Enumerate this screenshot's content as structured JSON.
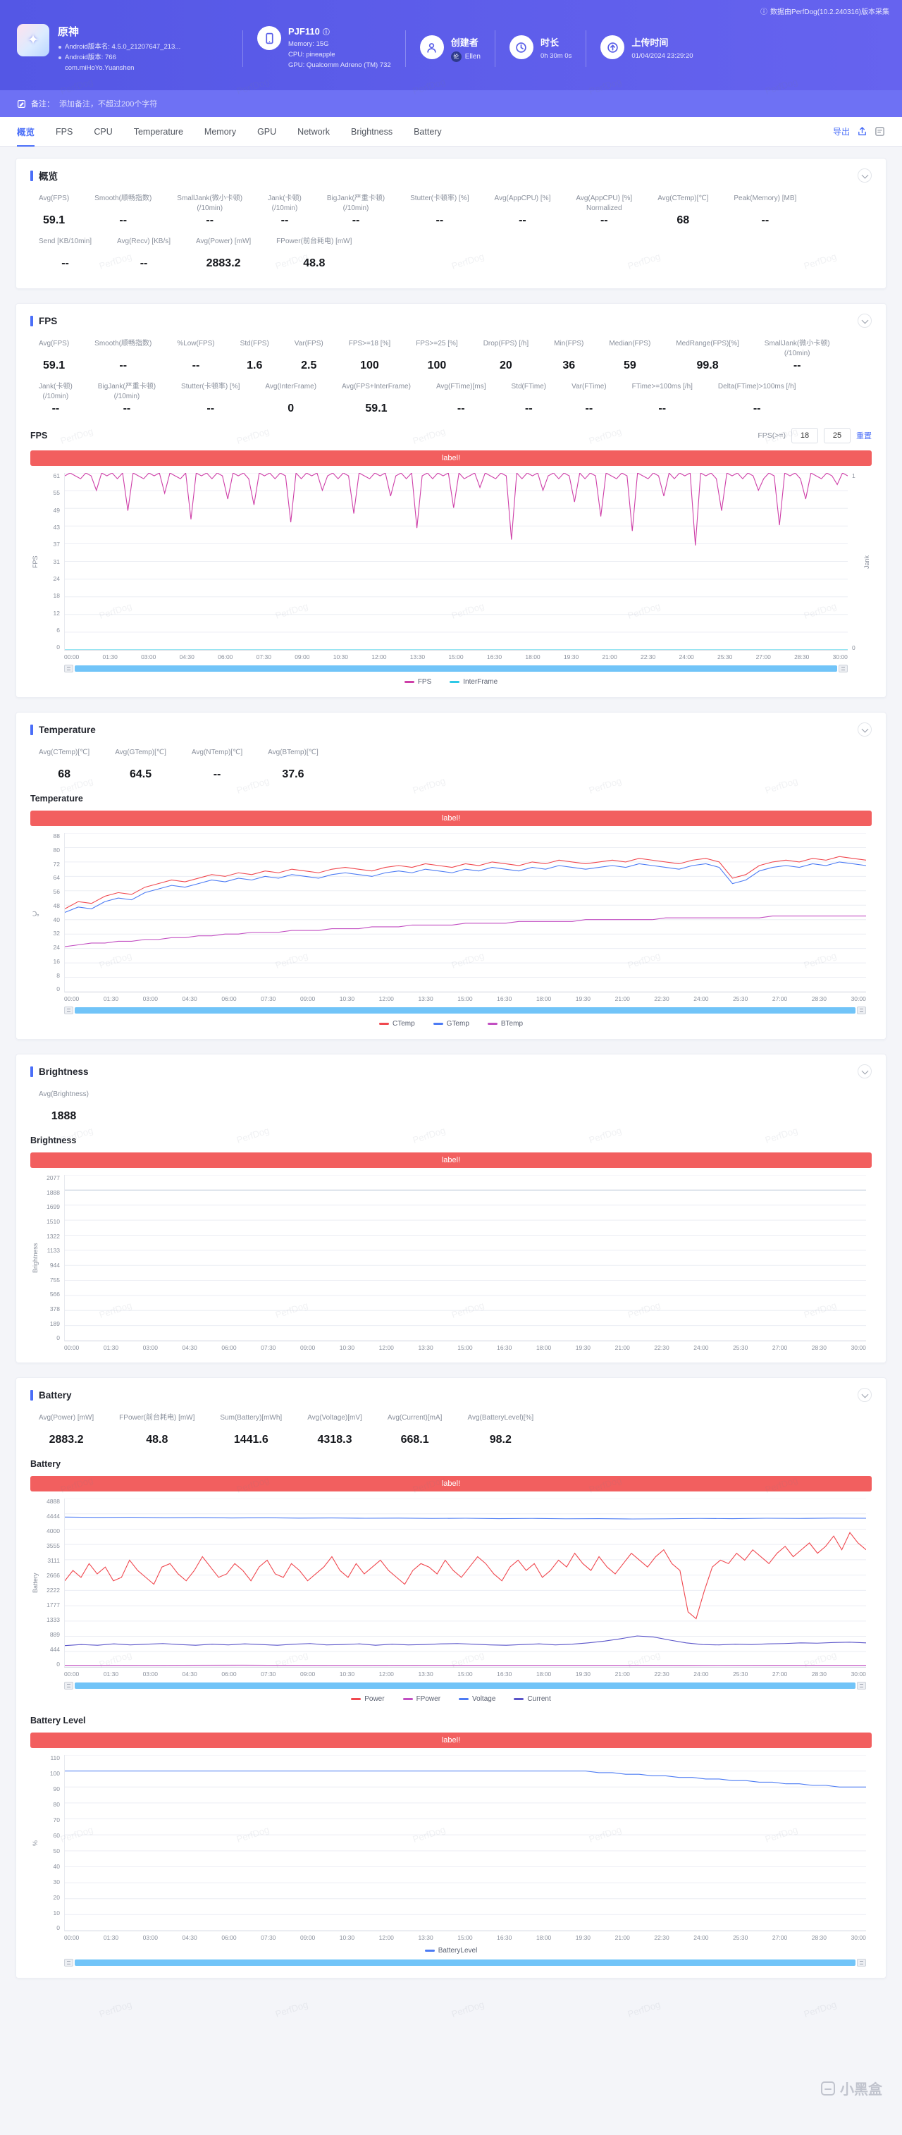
{
  "meta": {
    "collector_note": "数据由PerfDog(10.2.240316)版本采集",
    "info_icon": "ⓘ"
  },
  "watermark": "PerfDog",
  "footer_watermark": "小黑盒",
  "banner_label": "label!",
  "export_label": "导出",
  "active_tab": "概览",
  "tabs": [
    "概览",
    "FPS",
    "CPU",
    "Temperature",
    "Memory",
    "GPU",
    "Network",
    "Brightness",
    "Battery"
  ],
  "header": {
    "app": {
      "name": "原神",
      "lines": [
        "Android版本名: 4.5.0_21207647_213...",
        "Android版本: 766",
        "com.miHoYo.Yuanshen"
      ]
    },
    "device": {
      "model": "PJF110",
      "memory": "Memory: 15G",
      "cpu": "CPU: pineapple",
      "gpu": "GPU: Qualcomm Adreno (TM) 732"
    },
    "creator": {
      "label": "创建者",
      "name": "Ellen",
      "avatar_text": "伦"
    },
    "duration": {
      "label": "时长",
      "value": "0h 30m 0s"
    },
    "upload": {
      "label": "上传时间",
      "value": "01/04/2024 23:29:20"
    },
    "note_label": "备注：",
    "note_placeholder": "添加备注，不超过200个字符"
  },
  "sections": {
    "overview": {
      "title": "概览",
      "metric_rows": [
        [
          {
            "label": "Avg(FPS)",
            "value": "59.1"
          },
          {
            "label": "Smooth(顺畅指数)",
            "value": "--"
          },
          {
            "label": "SmallJank(微小卡顿)",
            "label2": "(/10min)",
            "value": "--"
          },
          {
            "label": "Jank(卡顿)",
            "label2": "(/10min)",
            "value": "--"
          },
          {
            "label": "BigJank(严重卡顿)",
            "label2": "(/10min)",
            "value": "--"
          },
          {
            "label": "Stutter(卡顿率) [%]",
            "value": "--"
          },
          {
            "label": "Avg(AppCPU) [%]",
            "value": "--"
          },
          {
            "label": "Avg(AppCPU) [%]",
            "label2": "Normalized",
            "value": "--"
          },
          {
            "label": "Avg(CTemp)[℃]",
            "value": "68"
          },
          {
            "label": "Peak(Memory) [MB]",
            "value": "--"
          }
        ],
        [
          {
            "label": "Send [KB/10min]",
            "value": "--"
          },
          {
            "label": "Avg(Recv) [KB/s]",
            "value": "--"
          },
          {
            "label": "Avg(Power) [mW]",
            "value": "2883.2"
          },
          {
            "label": "FPower(前台耗电) [mW]",
            "value": "48.8"
          }
        ]
      ]
    },
    "fps": {
      "title": "FPS",
      "chart_title": "FPS",
      "controls": {
        "label": "FPS(>=)",
        "low": "18",
        "high": "25",
        "reset": "重置"
      },
      "metric_rows": [
        [
          {
            "label": "Avg(FPS)",
            "value": "59.1"
          },
          {
            "label": "Smooth(顺畅指数)",
            "value": "--"
          },
          {
            "label": "%Low(FPS)",
            "value": "--"
          },
          {
            "label": "Std(FPS)",
            "value": "1.6"
          },
          {
            "label": "Var(FPS)",
            "value": "2.5"
          },
          {
            "label": "FPS>=18 [%]",
            "value": "100"
          },
          {
            "label": "FPS>=25 [%]",
            "value": "100"
          },
          {
            "label": "Drop(FPS) [/h]",
            "value": "20"
          },
          {
            "label": "Min(FPS)",
            "value": "36"
          },
          {
            "label": "Median(FPS)",
            "value": "59"
          },
          {
            "label": "MedRange(FPS)[%]",
            "value": "99.8"
          },
          {
            "label": "SmallJank(微小卡顿)",
            "label2": "(/10min)",
            "value": "--"
          }
        ],
        [
          {
            "label": "Jank(卡顿)",
            "label2": "(/10min)",
            "value": "--"
          },
          {
            "label": "BigJank(严重卡顿)",
            "label2": "(/10min)",
            "value": "--"
          },
          {
            "label": "Stutter(卡顿率) [%]",
            "value": "--"
          },
          {
            "label": "Avg(InterFrame)",
            "value": "0"
          },
          {
            "label": "Avg(FPS+InterFrame)",
            "value": "59.1"
          },
          {
            "label": "Avg(FTime)[ms]",
            "value": "--"
          },
          {
            "label": "Std(FTime)",
            "value": "--"
          },
          {
            "label": "Var(FTime)",
            "value": "--"
          },
          {
            "label": "FTime>=100ms [/h]",
            "value": "--"
          },
          {
            "label": "Delta(FTime)>100ms [/h]",
            "value": "--"
          }
        ]
      ]
    },
    "temperature": {
      "title": "Temperature",
      "chart_title": "Temperature",
      "metric_rows": [
        [
          {
            "label": "Avg(CTemp)[℃]",
            "value": "68"
          },
          {
            "label": "Avg(GTemp)[℃]",
            "value": "64.5"
          },
          {
            "label": "Avg(NTemp)[℃]",
            "value": "--"
          },
          {
            "label": "Avg(BTemp)[℃]",
            "value": "37.6"
          }
        ]
      ]
    },
    "brightness": {
      "title": "Brightness",
      "chart_title": "Brightness",
      "metric_rows": [
        [
          {
            "label": "Avg(Brightness)",
            "value": "1888"
          }
        ]
      ]
    },
    "battery": {
      "title": "Battery",
      "chart_title": "Battery",
      "chart2_title": "Battery Level",
      "metric_rows": [
        [
          {
            "label": "Avg(Power) [mW]",
            "value": "2883.2"
          },
          {
            "label": "FPower(前台耗电) [mW]",
            "value": "48.8"
          },
          {
            "label": "Sum(Battery)[mWh]",
            "value": "1441.6"
          },
          {
            "label": "Avg(Voltage)[mV]",
            "value": "4318.3"
          },
          {
            "label": "Avg(Current)[mA]",
            "value": "668.1"
          },
          {
            "label": "Avg(BatteryLevel)[%]",
            "value": "98.2"
          }
        ]
      ]
    }
  },
  "time_ticks": [
    "00:00",
    "01:30",
    "03:00",
    "04:30",
    "06:00",
    "07:30",
    "09:00",
    "10:30",
    "12:00",
    "13:30",
    "15:00",
    "16:30",
    "18:00",
    "19:30",
    "21:00",
    "22:30",
    "24:00",
    "25:30",
    "27:00",
    "28:30",
    "30:00"
  ],
  "chart_data": [
    {
      "id": "fps",
      "type": "line",
      "title": "FPS",
      "ylabel": "FPS",
      "ylabel2": "Jank",
      "ylim": [
        0,
        61
      ],
      "y_ticks": [
        0,
        6,
        12,
        18,
        24,
        31,
        37,
        43,
        49,
        55,
        61
      ],
      "y2_ticks": [
        0,
        1
      ],
      "grid": true,
      "legend_position": "bottom",
      "series": [
        {
          "name": "FPS",
          "color": "#CE3FA8",
          "values": [
            60,
            61,
            60,
            59,
            61,
            60,
            55,
            61,
            60,
            61,
            59,
            61,
            48,
            61,
            60,
            59,
            61,
            60,
            61,
            54,
            61,
            60,
            59,
            61,
            45,
            61,
            60,
            61,
            59,
            61,
            60,
            52,
            61,
            60,
            61,
            59,
            50,
            61,
            60,
            61,
            59,
            61,
            60,
            44,
            61,
            59,
            61,
            60,
            61,
            55,
            60,
            61,
            59,
            61,
            60,
            47,
            61,
            60,
            59,
            61,
            60,
            61,
            53,
            60,
            61,
            59,
            61,
            42,
            60,
            61,
            59,
            61,
            60,
            61,
            49,
            61,
            59,
            60,
            61,
            56,
            61,
            60,
            59,
            61,
            60,
            38,
            61,
            59,
            61,
            60,
            61,
            55,
            60,
            61,
            59,
            61,
            60,
            51,
            61,
            59,
            61,
            60,
            46,
            61,
            60,
            59,
            61,
            60,
            41,
            61,
            60,
            59,
            61,
            60,
            53,
            61,
            59,
            61,
            60,
            61,
            36,
            61,
            60,
            61,
            59,
            48,
            61,
            60,
            61,
            59,
            61,
            60,
            55,
            59,
            61,
            60,
            43,
            61,
            60,
            61,
            59,
            52,
            61,
            60,
            59,
            61,
            60,
            57,
            61,
            60
          ]
        },
        {
          "name": "InterFrame",
          "color": "#2EC8E6",
          "values": [
            0,
            0
          ]
        }
      ]
    },
    {
      "id": "temperature",
      "type": "line",
      "title": "Temperature",
      "ylabel": "℃",
      "ylim": [
        0,
        88
      ],
      "y_ticks": [
        0,
        8,
        16,
        24,
        32,
        40,
        48,
        56,
        64,
        72,
        80,
        88
      ],
      "grid": true,
      "legend_position": "bottom",
      "series": [
        {
          "name": "CTemp",
          "color": "#F0484F",
          "values": [
            46,
            50,
            49,
            53,
            55,
            54,
            58,
            60,
            62,
            61,
            63,
            65,
            64,
            66,
            65,
            67,
            66,
            68,
            67,
            66,
            68,
            69,
            68,
            67,
            69,
            70,
            69,
            71,
            70,
            69,
            71,
            70,
            72,
            71,
            70,
            72,
            71,
            73,
            72,
            71,
            72,
            73,
            72,
            74,
            73,
            72,
            71,
            73,
            74,
            72,
            63,
            65,
            70,
            72,
            73,
            72,
            74,
            73,
            75,
            74,
            73
          ]
        },
        {
          "name": "GTemp",
          "color": "#4C7BF4",
          "values": [
            44,
            47,
            46,
            50,
            52,
            51,
            55,
            57,
            59,
            58,
            60,
            62,
            61,
            63,
            62,
            64,
            63,
            65,
            64,
            63,
            65,
            66,
            65,
            64,
            66,
            67,
            66,
            68,
            67,
            66,
            68,
            67,
            69,
            68,
            67,
            69,
            68,
            70,
            69,
            68,
            69,
            70,
            69,
            71,
            70,
            69,
            68,
            70,
            71,
            69,
            60,
            62,
            67,
            69,
            70,
            69,
            71,
            70,
            72,
            71,
            70
          ]
        },
        {
          "name": "BTemp",
          "color": "#C24FC2",
          "values": [
            25,
            26,
            27,
            27,
            28,
            28,
            29,
            29,
            30,
            30,
            31,
            31,
            32,
            32,
            33,
            33,
            33,
            34,
            34,
            34,
            35,
            35,
            35,
            36,
            36,
            36,
            37,
            37,
            37,
            37,
            38,
            38,
            38,
            38,
            39,
            39,
            39,
            39,
            39,
            40,
            40,
            40,
            40,
            40,
            40,
            41,
            41,
            41,
            41,
            41,
            41,
            41,
            41,
            42,
            42,
            42,
            42,
            42,
            42,
            42,
            42
          ]
        }
      ]
    },
    {
      "id": "brightness",
      "type": "line",
      "title": "Brightness",
      "ylabel": "Brightness",
      "ylim": [
        0,
        2077
      ],
      "y_ticks": [
        0,
        189,
        378,
        566,
        755,
        944,
        1133,
        1322,
        1510,
        1699,
        1888,
        2077
      ],
      "grid": true,
      "legend_position": "none",
      "series": [
        {
          "name": "Brightness",
          "color": "#B9C6D6",
          "values": [
            1888,
            1888
          ]
        }
      ]
    },
    {
      "id": "battery",
      "type": "line",
      "title": "Battery",
      "ylabel": "Battery",
      "ylim": [
        0,
        4888
      ],
      "y_ticks": [
        0,
        444,
        889,
        1333,
        1777,
        2222,
        2666,
        3111,
        3555,
        4000,
        4444,
        4888
      ],
      "grid": true,
      "legend_position": "bottom",
      "series": [
        {
          "name": "Power",
          "color": "#F0484F",
          "values": [
            2500,
            2800,
            2600,
            3000,
            2700,
            2900,
            2500,
            2600,
            3100,
            2800,
            2600,
            2400,
            2900,
            3000,
            2700,
            2500,
            2800,
            3200,
            2900,
            2600,
            2700,
            3000,
            2800,
            2500,
            2900,
            3100,
            2700,
            2600,
            3000,
            2800,
            2500,
            2700,
            2900,
            3200,
            2800,
            2600,
            3000,
            2700,
            2900,
            3100,
            2800,
            2600,
            2400,
            2800,
            3000,
            2900,
            2700,
            3100,
            2800,
            2600,
            2900,
            3200,
            3000,
            2700,
            2500,
            2900,
            3100,
            2800,
            3000,
            2600,
            2800,
            3100,
            2900,
            3300,
            3000,
            2800,
            3200,
            2900,
            2700,
            3000,
            3300,
            3100,
            2900,
            3200,
            3400,
            3000,
            2800,
            1600,
            1400,
            2200,
            2900,
            3100,
            3000,
            3300,
            3100,
            3400,
            3200,
            3000,
            3300,
            3500,
            3200,
            3400,
            3600,
            3300,
            3500,
            3800,
            3400,
            3900,
            3600,
            3400
          ]
        },
        {
          "name": "FPower",
          "color": "#C24FC2",
          "values": [
            50,
            48,
            52,
            47,
            50,
            49,
            51,
            48,
            50,
            49
          ]
        },
        {
          "name": "Voltage",
          "color": "#4C7BF4",
          "values": [
            4350,
            4340,
            4345,
            4330,
            4335,
            4325,
            4330,
            4320,
            4325,
            4315,
            4320,
            4310,
            4315,
            4305,
            4310,
            4300,
            4305,
            4295,
            4300,
            4310,
            4305,
            4315,
            4310,
            4320,
            4315
          ]
        },
        {
          "name": "Current",
          "color": "#5A54C9",
          "values": [
            620,
            650,
            630,
            670,
            640,
            660,
            680,
            650,
            630,
            660,
            640,
            670,
            650,
            630,
            660,
            680,
            640,
            650,
            670,
            630,
            660,
            640,
            650,
            670,
            680,
            660,
            640,
            630,
            650,
            670,
            640,
            660,
            700,
            750,
            820,
            900,
            870,
            780,
            700,
            650,
            640,
            660,
            650,
            670,
            680,
            700,
            690,
            710,
            720,
            700
          ]
        }
      ]
    },
    {
      "id": "batterylevel",
      "type": "line",
      "title": "Battery Level",
      "ylabel": "%",
      "ylim": [
        0,
        110
      ],
      "y_ticks": [
        0,
        10,
        20,
        30,
        40,
        50,
        60,
        70,
        80,
        90,
        100,
        110
      ],
      "grid": true,
      "legend_position": "bottom",
      "series": [
        {
          "name": "BatteryLevel",
          "color": "#4C7BF4",
          "values": [
            100,
            100,
            100,
            100,
            100,
            100,
            100,
            100,
            100,
            100,
            100,
            100,
            100,
            100,
            100,
            100,
            100,
            100,
            100,
            100,
            100,
            100,
            100,
            100,
            100,
            100,
            100,
            100,
            100,
            100,
            100,
            100,
            100,
            100,
            100,
            100,
            100,
            100,
            100,
            100,
            99,
            99,
            98,
            98,
            97,
            97,
            96,
            96,
            95,
            95,
            94,
            94,
            93,
            93,
            92,
            92,
            91,
            91,
            90,
            90,
            90
          ]
        }
      ]
    }
  ]
}
